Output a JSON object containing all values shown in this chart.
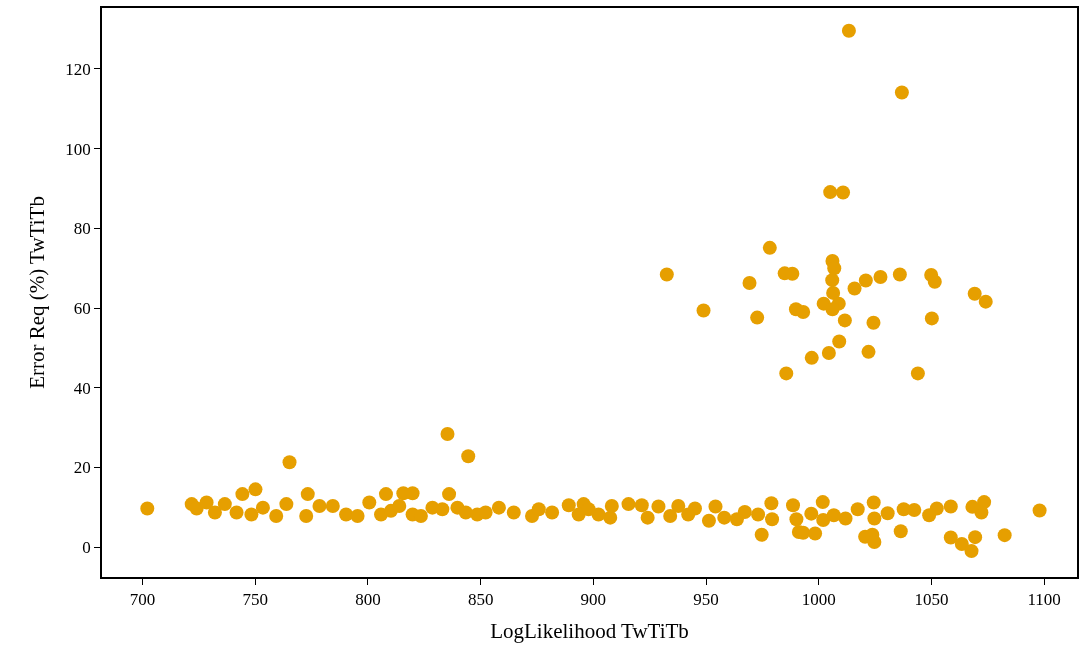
{
  "chart_data": {
    "type": "scatter",
    "xlabel": "LogLikelihood TwTiTb",
    "ylabel": "Error Req (%) TwTiTb",
    "xlim": [
      682,
      1114.6
    ],
    "ylim": [
      -7.5,
      135.3
    ],
    "xticks": [
      700,
      750,
      800,
      850,
      900,
      950,
      1000,
      1050,
      1100
    ],
    "yticks": [
      0,
      20,
      40,
      60,
      80,
      100,
      120
    ],
    "marker": "circle",
    "series": [
      {
        "color": "#e69f00",
        "x": [
          1013.4,
          1036.9,
          1005.1,
          1010.8,
          978.3,
          932.6,
          969.3,
          984.9,
          988.3,
          1006.1,
          1006.9,
          1006.0,
          1006.4,
          1015.9,
          1020.9,
          1027.4,
          1036.0,
          1049.9,
          1051.5,
          1069.2,
          1074.1,
          948.9,
          972.7,
          989.9,
          993.1,
          1002.2,
          1008.9,
          1006.1,
          1011.6,
          1024.3,
          1050.2,
          1009.1,
          1004.5,
          996.9,
          1022.1,
          985.6,
          1044.0,
          702.1,
          765.2,
          835.3,
          844.5,
          750.1,
          744.3,
          773.3,
          808.0,
          815.7,
          819.8,
          836.0,
          974.7,
          991.2,
          993.1,
          998.4,
          1020.6,
          1023.8,
          1024.7,
          1036.4,
          1058.6,
          1063.5,
          1067.8,
          1069.4,
          1082.5,
          1098.0,
          1073.4,
          1072.2,
          1068.2,
          1058.6,
          1052.4,
          1049.0,
          1042.4,
          1037.7,
          1030.6,
          1024.4,
          1024.7,
          1017.3,
          1011.9,
          1001.8,
          1002.0,
          996.7,
          1006.7,
          988.6,
          990.1,
          979.0,
          979.3,
          973.1,
          967.2,
          963.7,
          954.2,
          951.3,
          958.1,
          945.1,
          937.7,
          928.9,
          924.1,
          915.6,
          907.5,
          902.3,
          895.7,
          721.8,
          724.0,
          728.4,
          732.1,
          736.5,
          741.7,
          748.3,
          753.4,
          759.3,
          763.8,
          772.6,
          778.5,
          784.4,
          790.3,
          795.4,
          800.6,
          805.8,
          810.2,
          813.9,
          819.8,
          823.5,
          828.6,
          833.0,
          839.7,
          843.4,
          848.5,
          852.2,
          858.1,
          864.7,
          872.8,
          875.8,
          881.7,
          889.1,
          893.5,
          897.9,
          908.2,
          921.5,
          934.1,
          942.1
        ],
        "values": [
          129.6,
          114.1,
          89.1,
          89.0,
          75.1,
          68.4,
          66.3,
          68.7,
          68.6,
          71.8,
          70.0,
          67.0,
          63.8,
          64.9,
          66.9,
          67.8,
          68.4,
          68.3,
          66.6,
          63.6,
          61.6,
          59.4,
          57.6,
          59.7,
          59.0,
          61.1,
          61.1,
          59.7,
          56.9,
          56.3,
          57.4,
          51.6,
          48.7,
          47.5,
          49.0,
          43.6,
          43.6,
          9.7,
          21.3,
          28.4,
          22.8,
          14.5,
          13.3,
          13.3,
          13.3,
          13.5,
          13.5,
          13.3,
          3.1,
          3.8,
          3.6,
          3.4,
          2.6,
          3.1,
          1.3,
          4.0,
          2.4,
          0.8,
          -1.0,
          2.5,
          3.0,
          9.2,
          11.3,
          8.7,
          10.1,
          10.2,
          9.7,
          8.0,
          9.3,
          9.5,
          8.5,
          11.2,
          7.2,
          9.5,
          7.2,
          11.3,
          6.8,
          8.4,
          8.0,
          10.5,
          7.0,
          11.0,
          7.0,
          8.2,
          8.8,
          7.0,
          10.2,
          6.6,
          7.4,
          9.7,
          10.3,
          10.2,
          7.4,
          10.8,
          7.4,
          8.2,
          10.8,
          10.8,
          9.7,
          11.2,
          8.7,
          10.8,
          8.7,
          8.2,
          9.9,
          7.8,
          10.8,
          7.8,
          10.3,
          10.3,
          8.2,
          7.8,
          11.2,
          8.2,
          9.1,
          10.3,
          8.2,
          7.8,
          9.9,
          9.5,
          9.9,
          8.7,
          8.2,
          8.7,
          9.9,
          8.7,
          7.8,
          9.5,
          8.7,
          10.5,
          8.2,
          9.5,
          10.3,
          10.5,
          7.8,
          8.2
        ]
      }
    ]
  }
}
